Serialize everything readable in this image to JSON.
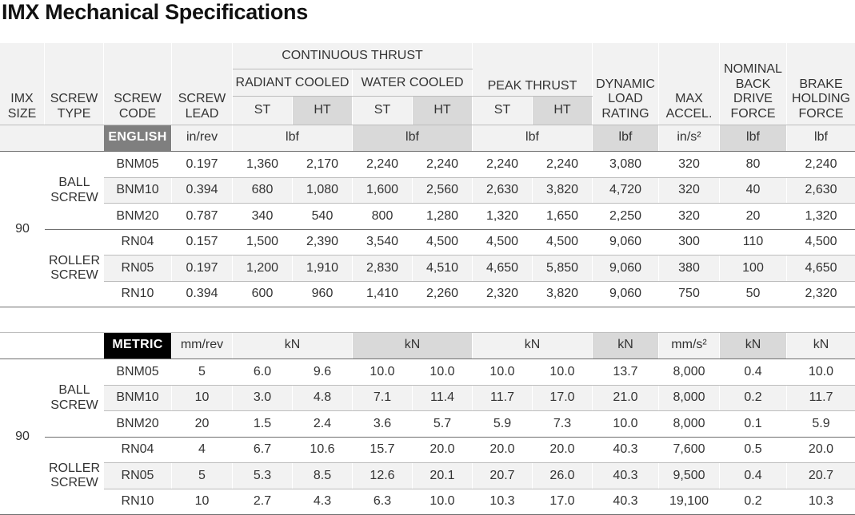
{
  "title": "IMX Mechanical Specifications",
  "headers": {
    "imx_size": "IMX\nSIZE",
    "screw_type": "SCREW\nTYPE",
    "screw_code": "SCREW\nCODE",
    "screw_lead": "SCREW\nLEAD",
    "continuous_thrust": "CONTINUOUS THRUST",
    "radiant_cooled": "RADIANT COOLED",
    "water_cooled": "WATER COOLED",
    "peak_thrust": "PEAK THRUST",
    "st": "ST",
    "ht": "HT",
    "dynamic_load": "DYNAMIC\nLOAD\nRATING",
    "max_accel": "MAX\nACCEL.",
    "back_drive": "NOMINAL\nBACK\nDRIVE\nFORCE",
    "brake_holding": "BRAKE\nHOLDING\nFORCE"
  },
  "english": {
    "tag": "ENGLISH",
    "units": {
      "lead": "in/rev",
      "radiant": "lbf",
      "water": "lbf",
      "peak": "lbf",
      "dynamic": "lbf",
      "accel": "in/s²",
      "back": "lbf",
      "brake": "lbf"
    },
    "size": "90",
    "groups": [
      {
        "type": "BALL\nSCREW",
        "rows": [
          [
            "BNM05",
            "0.197",
            "1,360",
            "2,170",
            "2,240",
            "2,240",
            "2,240",
            "2,240",
            "3,080",
            "320",
            "80",
            "2,240"
          ],
          [
            "BNM10",
            "0.394",
            "680",
            "1,080",
            "1,600",
            "2,560",
            "2,630",
            "3,820",
            "4,720",
            "320",
            "40",
            "2,630"
          ],
          [
            "BNM20",
            "0.787",
            "340",
            "540",
            "800",
            "1,280",
            "1,320",
            "1,650",
            "2,250",
            "320",
            "20",
            "1,320"
          ]
        ]
      },
      {
        "type": "ROLLER\nSCREW",
        "rows": [
          [
            "RN04",
            "0.157",
            "1,500",
            "2,390",
            "3,540",
            "4,500",
            "4,500",
            "4,500",
            "9,060",
            "300",
            "110",
            "4,500"
          ],
          [
            "RN05",
            "0.197",
            "1,200",
            "1,910",
            "2,830",
            "4,510",
            "4,650",
            "5,850",
            "9,060",
            "380",
            "100",
            "4,650"
          ],
          [
            "RN10",
            "0.394",
            "600",
            "960",
            "1,410",
            "2,260",
            "2,320",
            "3,820",
            "9,060",
            "750",
            "50",
            "2,320"
          ]
        ]
      }
    ]
  },
  "metric": {
    "tag": "METRIC",
    "units": {
      "lead": "mm/rev",
      "radiant": "kN",
      "water": "kN",
      "peak": "kN",
      "dynamic": "kN",
      "accel": "mm/s²",
      "back": "kN",
      "brake": "kN"
    },
    "size": "90",
    "groups": [
      {
        "type": "BALL\nSCREW",
        "rows": [
          [
            "BNM05",
            "5",
            "6.0",
            "9.6",
            "10.0",
            "10.0",
            "10.0",
            "10.0",
            "13.7",
            "8,000",
            "0.4",
            "10.0"
          ],
          [
            "BNM10",
            "10",
            "3.0",
            "4.8",
            "7.1",
            "11.4",
            "11.7",
            "17.0",
            "21.0",
            "8,000",
            "0.2",
            "11.7"
          ],
          [
            "BNM20",
            "20",
            "1.5",
            "2.4",
            "3.6",
            "5.7",
            "5.9",
            "7.3",
            "10.0",
            "8,000",
            "0.1",
            "5.9"
          ]
        ]
      },
      {
        "type": "ROLLER\nSCREW",
        "rows": [
          [
            "RN04",
            "4",
            "6.7",
            "10.6",
            "15.7",
            "20.0",
            "20.0",
            "20.0",
            "40.3",
            "7,600",
            "0.5",
            "20.0"
          ],
          [
            "RN05",
            "5",
            "5.3",
            "8.5",
            "12.6",
            "20.1",
            "20.7",
            "26.0",
            "40.3",
            "9,500",
            "0.4",
            "20.7"
          ],
          [
            "RN10",
            "10",
            "2.7",
            "4.3",
            "6.3",
            "10.0",
            "10.3",
            "17.0",
            "40.3",
            "19,100",
            "0.2",
            "10.3"
          ]
        ]
      }
    ]
  }
}
